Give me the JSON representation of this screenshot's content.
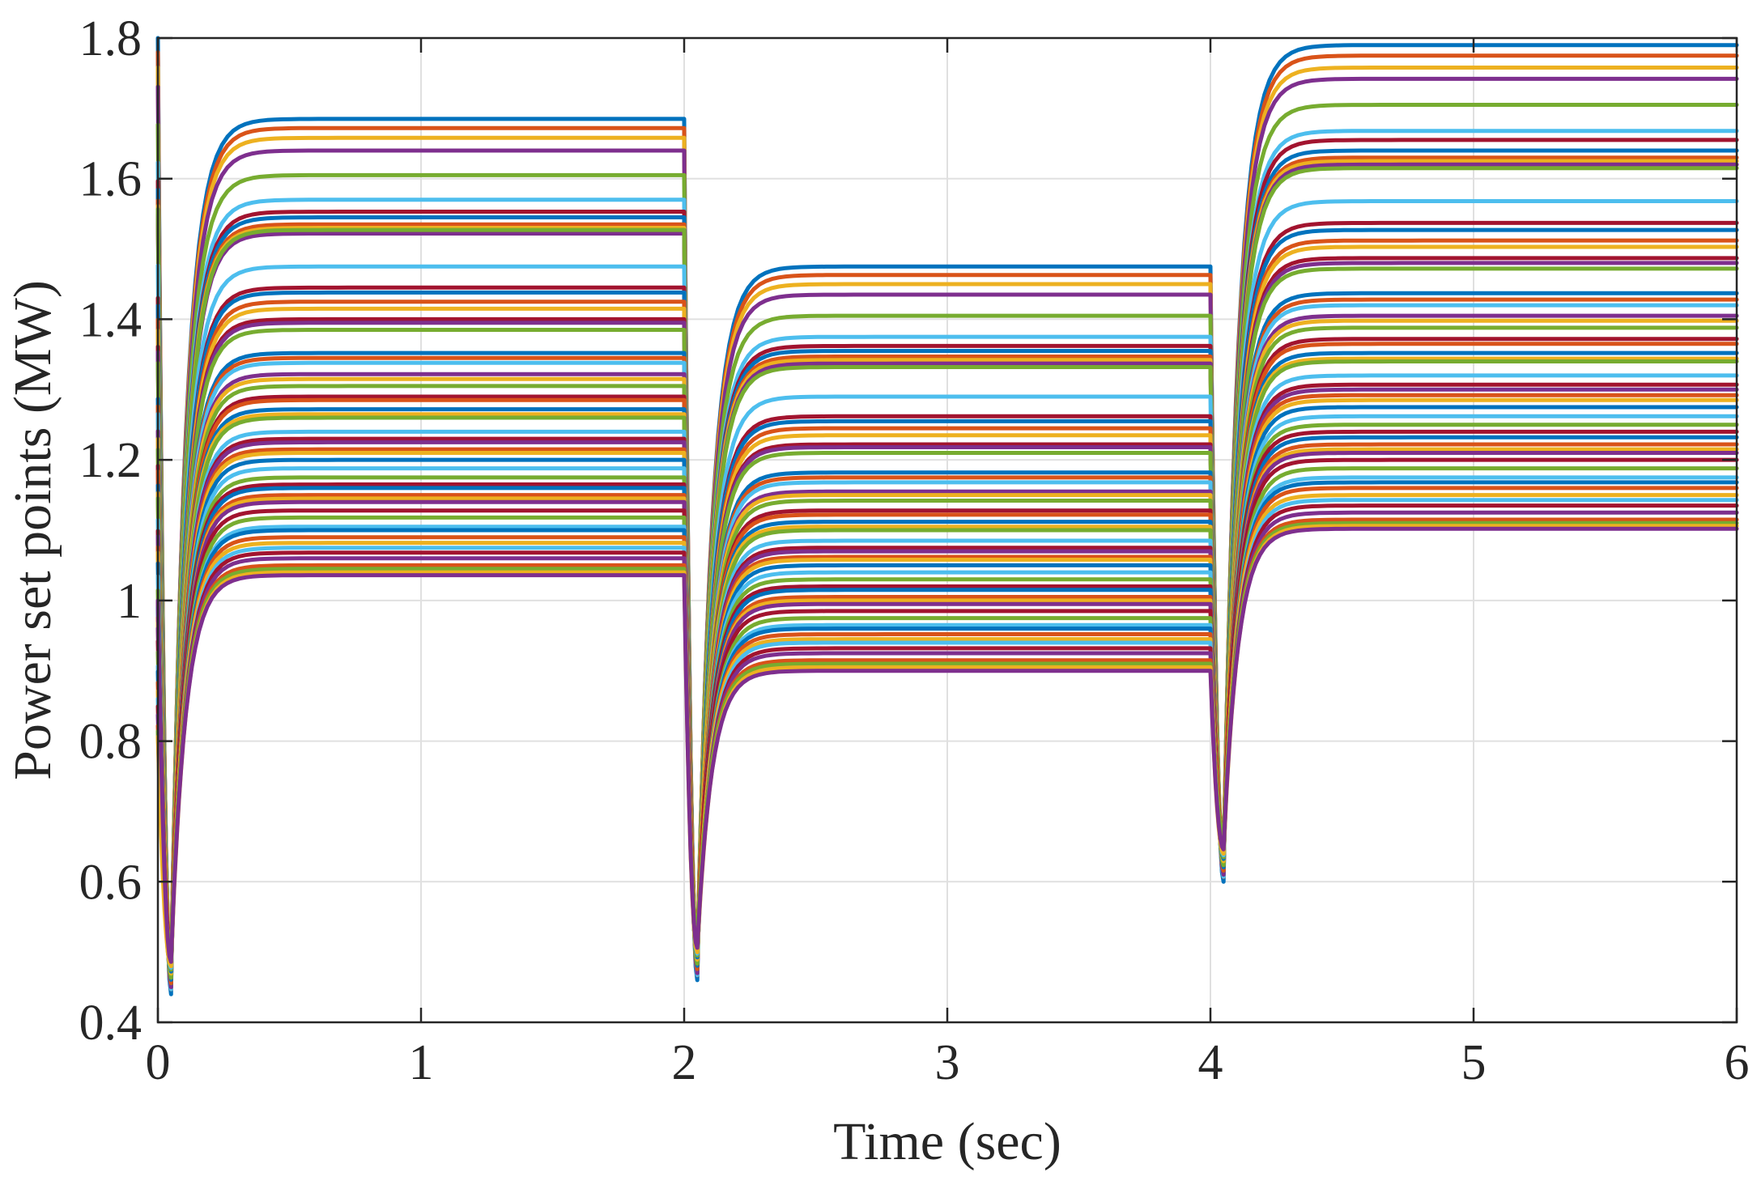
{
  "chart_data": {
    "type": "line",
    "title": "",
    "xlabel": "Time (sec)",
    "ylabel": "Power set points (MW)",
    "xlim": [
      0,
      6
    ],
    "ylim": [
      0.4,
      1.8
    ],
    "xticks": [
      0,
      1,
      2,
      3,
      4,
      5,
      6
    ],
    "xtick_labels": [
      "0",
      "1",
      "2",
      "3",
      "4",
      "5",
      "6"
    ],
    "yticks": [
      0.4,
      0.6,
      0.8,
      1.0,
      1.2,
      1.4,
      1.6,
      1.8
    ],
    "ytick_labels": [
      "0.4",
      "0.6",
      "0.8",
      "1",
      "1.2",
      "1.4",
      "1.6",
      "1.8"
    ],
    "grid": true,
    "legend": "none",
    "step_times": [
      0,
      2,
      4
    ],
    "dip_times": [
      0.05,
      2.05,
      4.05
    ],
    "dip_minimums": [
      0.44,
      0.46,
      0.6
    ],
    "series_colors": [
      "#0072BD",
      "#D95319",
      "#EDB120",
      "#7E2F8E",
      "#77AC30",
      "#4DBEEE",
      "#A2142F"
    ],
    "series": [
      {
        "color": "#0072BD",
        "values": [
          1.685,
          1.475,
          1.79
        ]
      },
      {
        "color": "#D95319",
        "values": [
          1.672,
          1.463,
          1.775
        ]
      },
      {
        "color": "#EDB120",
        "values": [
          1.658,
          1.45,
          1.758
        ]
      },
      {
        "color": "#7E2F8E",
        "values": [
          1.64,
          1.435,
          1.742
        ]
      },
      {
        "color": "#77AC30",
        "values": [
          1.605,
          1.405,
          1.705
        ]
      },
      {
        "color": "#4DBEEE",
        "values": [
          1.57,
          1.375,
          1.668
        ]
      },
      {
        "color": "#A2142F",
        "values": [
          1.553,
          1.362,
          1.655
        ]
      },
      {
        "color": "#0072BD",
        "values": [
          1.545,
          1.355,
          1.64
        ]
      },
      {
        "color": "#D95319",
        "values": [
          1.535,
          1.347,
          1.63
        ]
      },
      {
        "color": "#EDB120",
        "values": [
          1.53,
          1.342,
          1.625
        ]
      },
      {
        "color": "#7E2F8E",
        "values": [
          1.522,
          1.337,
          1.62
        ]
      },
      {
        "color": "#77AC30",
        "values": [
          1.527,
          1.332,
          1.615
        ]
      },
      {
        "color": "#4DBEEE",
        "values": [
          1.475,
          1.29,
          1.568
        ]
      },
      {
        "color": "#A2142F",
        "values": [
          1.445,
          1.262,
          1.537
        ]
      },
      {
        "color": "#0072BD",
        "values": [
          1.438,
          1.255,
          1.527
        ]
      },
      {
        "color": "#D95319",
        "values": [
          1.425,
          1.245,
          1.512
        ]
      },
      {
        "color": "#EDB120",
        "values": [
          1.415,
          1.235,
          1.503
        ]
      },
      {
        "color": "#A2142F",
        "values": [
          1.4,
          1.222,
          1.487
        ]
      },
      {
        "color": "#7E2F8E",
        "values": [
          1.395,
          1.218,
          1.48
        ]
      },
      {
        "color": "#77AC30",
        "values": [
          1.385,
          1.21,
          1.472
        ]
      },
      {
        "color": "#0072BD",
        "values": [
          1.352,
          1.182,
          1.437
        ]
      },
      {
        "color": "#D95319",
        "values": [
          1.345,
          1.175,
          1.428
        ]
      },
      {
        "color": "#4DBEEE",
        "values": [
          1.338,
          1.168,
          1.42
        ]
      },
      {
        "color": "#7E2F8E",
        "values": [
          1.322,
          1.155,
          1.405
        ]
      },
      {
        "color": "#EDB120",
        "values": [
          1.315,
          1.15,
          1.398
        ]
      },
      {
        "color": "#77AC30",
        "values": [
          1.305,
          1.142,
          1.388
        ]
      },
      {
        "color": "#A2142F",
        "values": [
          1.29,
          1.128,
          1.372
        ]
      },
      {
        "color": "#D95319",
        "values": [
          1.285,
          1.122,
          1.365
        ]
      },
      {
        "color": "#0072BD",
        "values": [
          1.272,
          1.112,
          1.352
        ]
      },
      {
        "color": "#EDB120",
        "values": [
          1.265,
          1.105,
          1.344
        ]
      },
      {
        "color": "#77AC30",
        "values": [
          1.26,
          1.1,
          1.34
        ]
      },
      {
        "color": "#4DBEEE",
        "values": [
          1.24,
          1.085,
          1.32
        ]
      },
      {
        "color": "#A2142F",
        "values": [
          1.23,
          1.075,
          1.307
        ]
      },
      {
        "color": "#7E2F8E",
        "values": [
          1.225,
          1.07,
          1.3
        ]
      },
      {
        "color": "#D95319",
        "values": [
          1.215,
          1.062,
          1.292
        ]
      },
      {
        "color": "#EDB120",
        "values": [
          1.21,
          1.058,
          1.285
        ]
      },
      {
        "color": "#0072BD",
        "values": [
          1.2,
          1.05,
          1.275
        ]
      },
      {
        "color": "#4DBEEE",
        "values": [
          1.188,
          1.04,
          1.262
        ]
      },
      {
        "color": "#77AC30",
        "values": [
          1.175,
          1.03,
          1.25
        ]
      },
      {
        "color": "#A2142F",
        "values": [
          1.165,
          1.02,
          1.24
        ]
      },
      {
        "color": "#0072BD",
        "values": [
          1.16,
          1.015,
          1.232
        ]
      },
      {
        "color": "#D95319",
        "values": [
          1.15,
          1.005,
          1.222
        ]
      },
      {
        "color": "#EDB120",
        "values": [
          1.145,
          1.0,
          1.215
        ]
      },
      {
        "color": "#7E2F8E",
        "values": [
          1.14,
          0.995,
          1.21
        ]
      },
      {
        "color": "#A2142F",
        "values": [
          1.128,
          0.985,
          1.2
        ]
      },
      {
        "color": "#77AC30",
        "values": [
          1.118,
          0.975,
          1.188
        ]
      },
      {
        "color": "#4DBEEE",
        "values": [
          1.105,
          0.965,
          1.175
        ]
      },
      {
        "color": "#0072BD",
        "values": [
          1.1,
          0.96,
          1.168
        ]
      },
      {
        "color": "#D95319",
        "values": [
          1.09,
          0.952,
          1.16
        ]
      },
      {
        "color": "#EDB120",
        "values": [
          1.082,
          0.945,
          1.15
        ]
      },
      {
        "color": "#4DBEEE",
        "values": [
          1.075,
          0.94,
          1.143
        ]
      },
      {
        "color": "#A2142F",
        "values": [
          1.068,
          0.932,
          1.135
        ]
      },
      {
        "color": "#7E2F8E",
        "values": [
          1.06,
          0.925,
          1.125
        ]
      },
      {
        "color": "#D95319",
        "values": [
          1.05,
          0.915,
          1.115
        ]
      },
      {
        "color": "#77AC30",
        "values": [
          1.045,
          0.91,
          1.11
        ]
      },
      {
        "color": "#EDB120",
        "values": [
          1.04,
          0.905,
          1.106
        ]
      },
      {
        "color": "#7E2F8E",
        "values": [
          1.036,
          0.9,
          1.102
        ]
      }
    ]
  }
}
